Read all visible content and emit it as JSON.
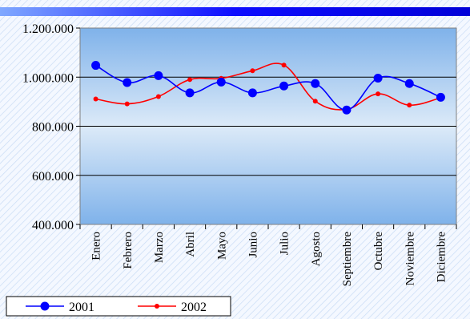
{
  "chart_data": {
    "type": "line",
    "title": "",
    "xlabel": "",
    "ylabel": "",
    "categories": [
      "Enero",
      "Febrero",
      "Marzo",
      "Abril",
      "Mayo",
      "Junio",
      "Julio",
      "Agosto",
      "Septiembre",
      "Octubre",
      "Noviembre",
      "Diciembre"
    ],
    "ylim": [
      400000,
      1200000
    ],
    "yticks": [
      400000,
      600000,
      800000,
      1000000,
      1200000
    ],
    "ytick_labels": [
      "400.000",
      "600.000",
      "800.000",
      "1.000.000",
      "1.200.000"
    ],
    "grid": true,
    "legend_position": "bottom-left",
    "series": [
      {
        "name": "2001",
        "color": "#0000ff",
        "marker": "large-circle",
        "values": [
          1048000,
          978000,
          1006000,
          936000,
          980000,
          936000,
          964000,
          974000,
          866000,
          996000,
          974000,
          918000
        ]
      },
      {
        "name": "2002",
        "color": "#ff0000",
        "marker": "small-circle",
        "values": [
          911000,
          891000,
          921000,
          990000,
          995000,
          1026000,
          1049000,
          902000,
          869000,
          932000,
          886000,
          916000
        ]
      }
    ]
  },
  "colors": {
    "plot_gradient_top": "#ffffff",
    "plot_gradient_bottom": "#7fb2ea",
    "outer_background": "#f2f7ff",
    "top_band": "#1a1aff"
  }
}
